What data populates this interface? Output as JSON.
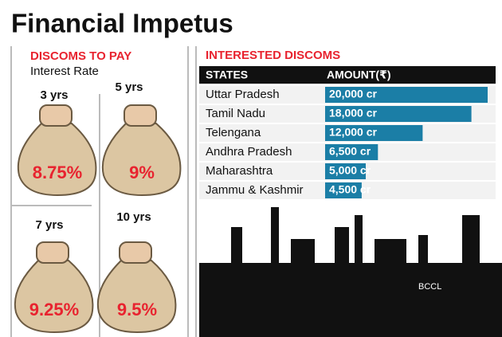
{
  "title": "Financial Impetus",
  "interest_panel": {
    "heading": "DISCOMS TO PAY",
    "subheading": "Interest Rate",
    "bags": [
      {
        "years": "3 yrs",
        "rate": "8.75%"
      },
      {
        "years": "5 yrs",
        "rate": "9%"
      },
      {
        "years": "7 yrs",
        "rate": "9.25%"
      },
      {
        "years": "10 yrs",
        "rate": "9.5%"
      }
    ]
  },
  "chart_data": {
    "type": "bar",
    "title": "INTERESTED DISCOMS",
    "x_label": "STATES",
    "y_label": "AMOUNT(₹)",
    "categories": [
      "Uttar Pradesh",
      "Tamil Nadu",
      "Telengana",
      "Andhra Pradesh",
      "Maharashtra",
      "Jammu & Kashmir"
    ],
    "values": [
      20000,
      18000,
      12000,
      6500,
      5000,
      4500
    ],
    "value_labels": [
      "20,000 cr",
      "18,000 cr",
      "12,000 cr",
      "6,500 cr",
      "5,000 cr",
      "4,500 cr"
    ],
    "color": "#1b7ea6"
  },
  "credit": "BCCL"
}
